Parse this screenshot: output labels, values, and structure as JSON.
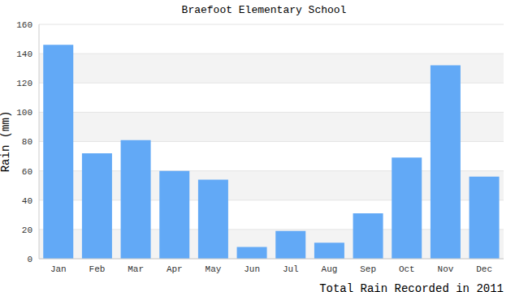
{
  "chart_data": {
    "type": "bar",
    "title": "Braefoot Elementary School",
    "x_label": "Total Rain Recorded in 2011",
    "y_label": "Rain (mm)",
    "categories": [
      "Jan",
      "Feb",
      "Mar",
      "Apr",
      "May",
      "Jun",
      "Jul",
      "Aug",
      "Sep",
      "Oct",
      "Nov",
      "Dec"
    ],
    "values": [
      146,
      72,
      81,
      60,
      54,
      8,
      19,
      11,
      31,
      69,
      132,
      56
    ],
    "color": "#62a9f6",
    "ylim": [
      0,
      160
    ],
    "yticks": [
      0,
      20,
      40,
      60,
      80,
      100,
      120,
      140,
      160
    ],
    "grid": true
  }
}
